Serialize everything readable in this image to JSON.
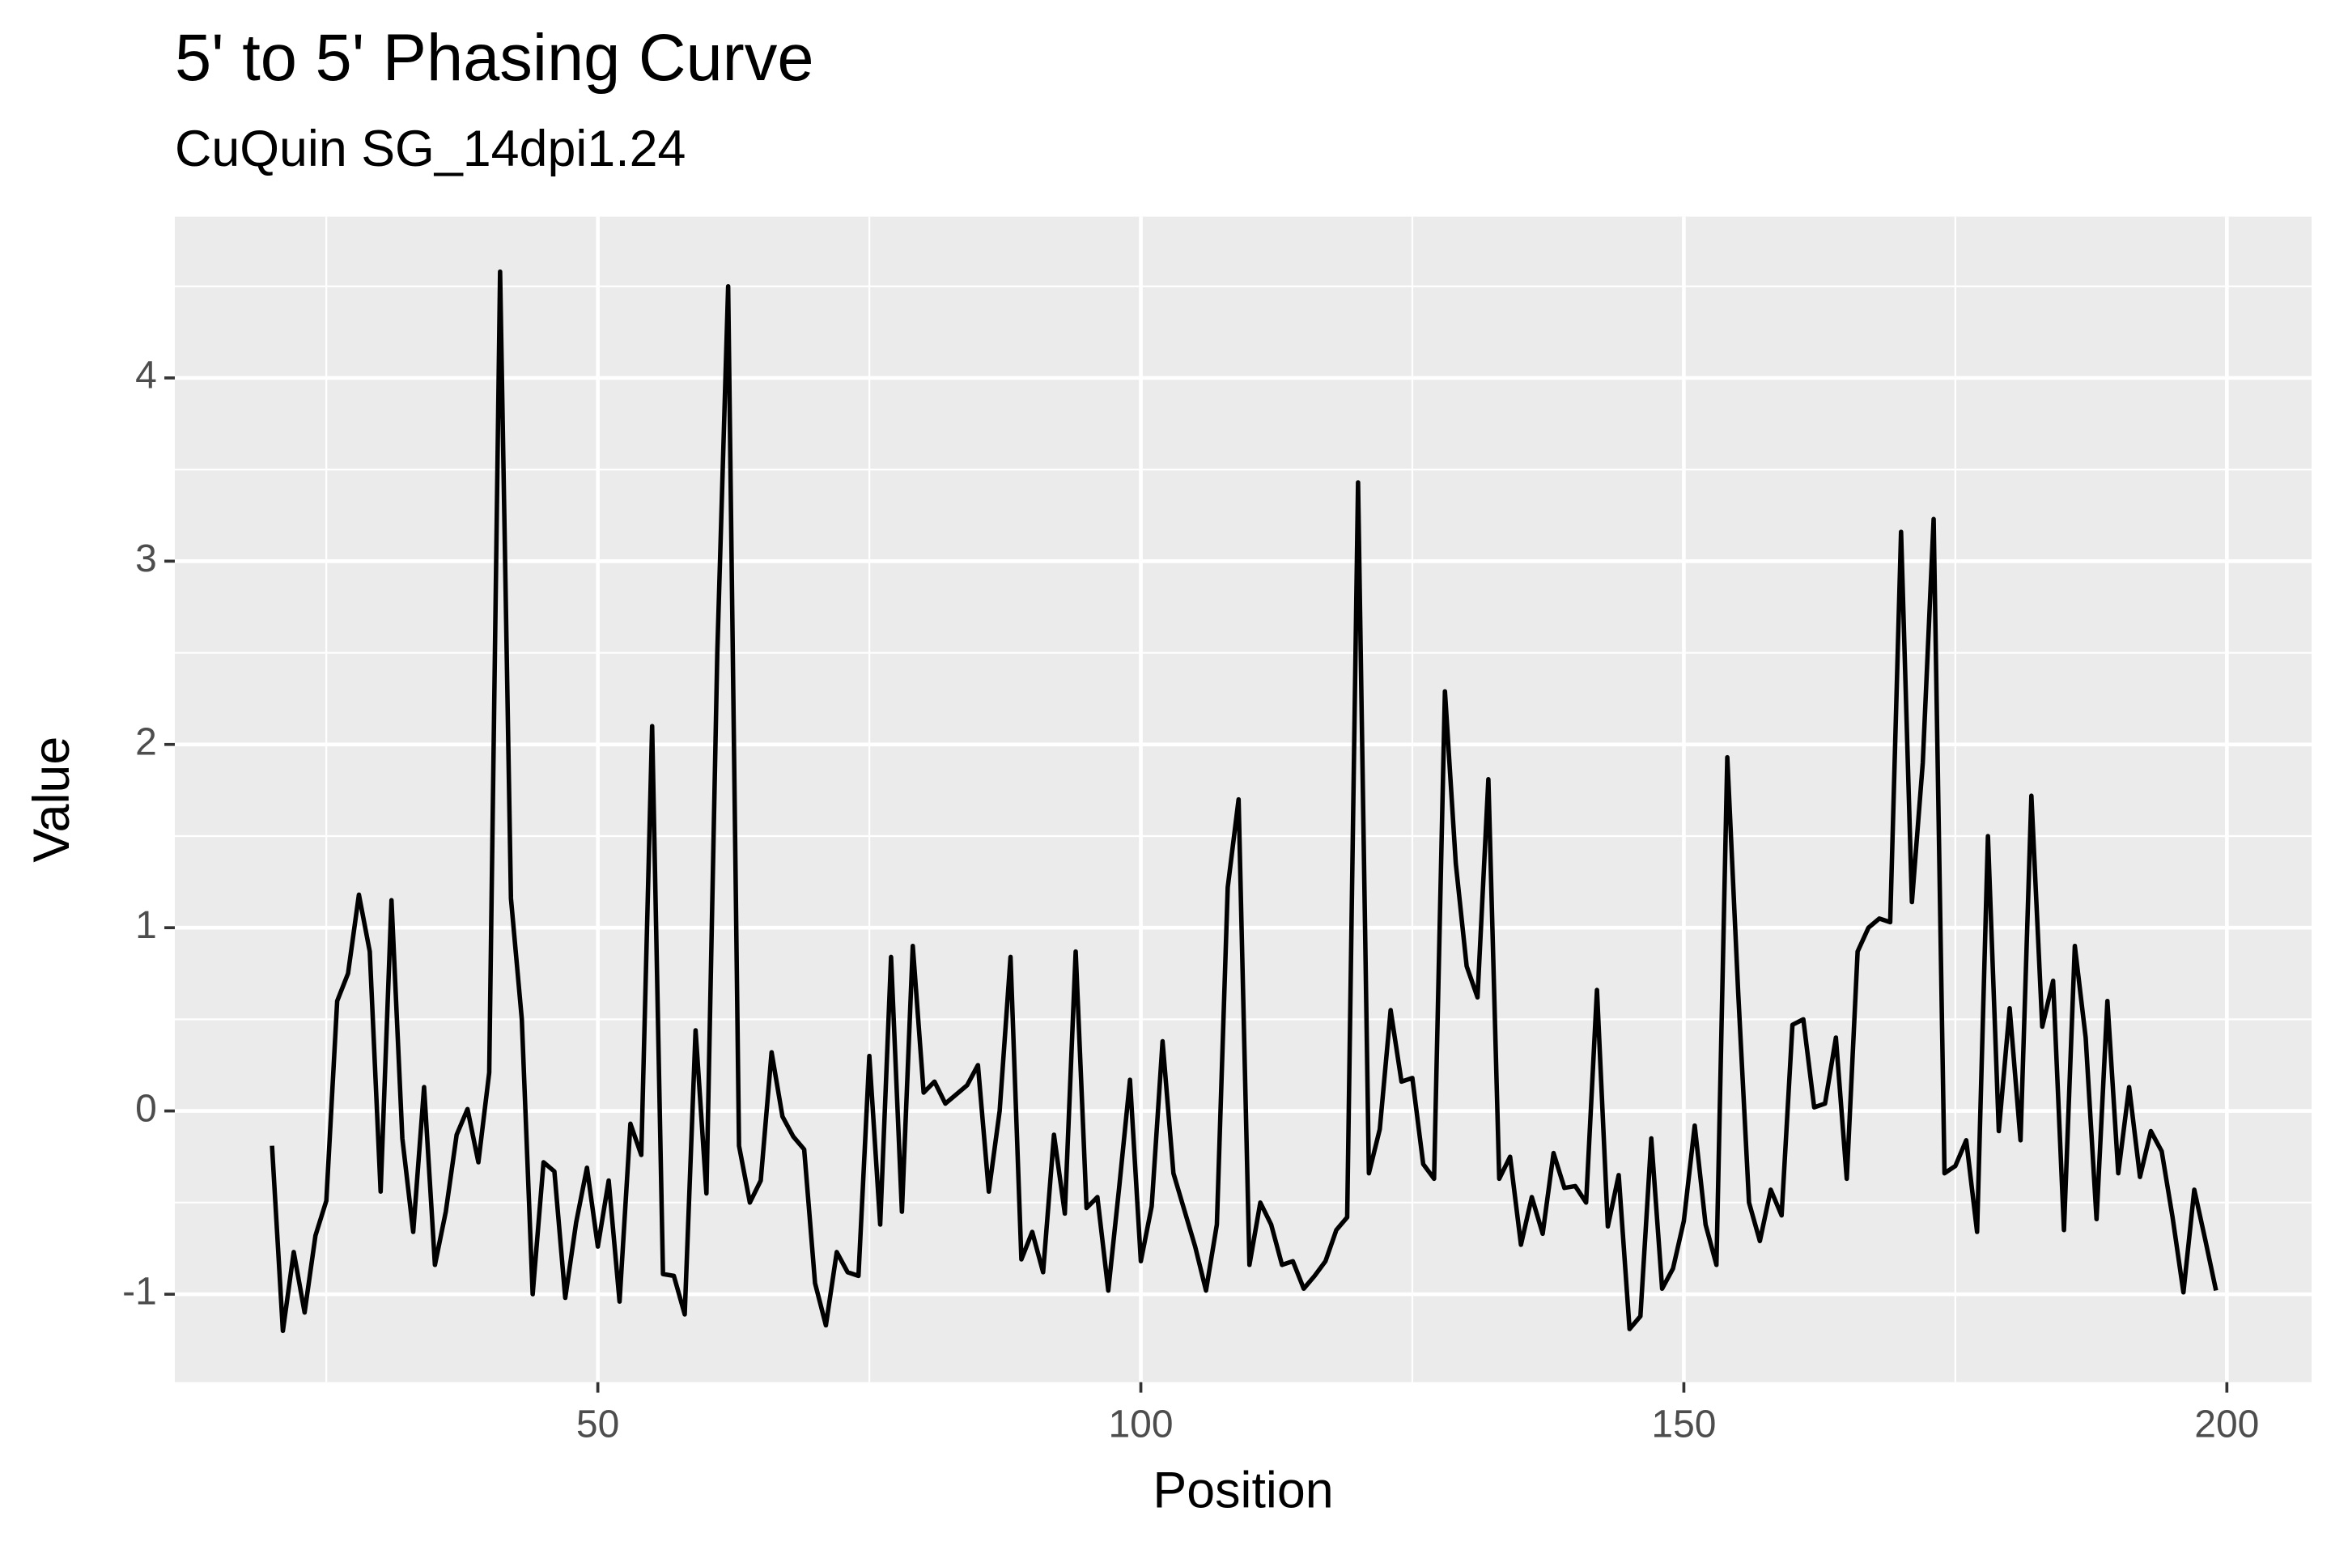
{
  "chart_data": {
    "type": "line",
    "title": "5' to 5' Phasing Curve",
    "subtitle": "CuQuin SG_14dpi1.24",
    "x_label": "Position",
    "y_label": "Value",
    "x": [
      20,
      21,
      22,
      23,
      24,
      25,
      26,
      27,
      28,
      29,
      30,
      31,
      32,
      33,
      34,
      35,
      36,
      37,
      38,
      39,
      40,
      41,
      42,
      43,
      44,
      45,
      46,
      47,
      48,
      49,
      50,
      51,
      52,
      53,
      54,
      55,
      56,
      57,
      58,
      59,
      60,
      61,
      62,
      63,
      64,
      65,
      66,
      67,
      68,
      69,
      70,
      71,
      72,
      73,
      74,
      75,
      76,
      77,
      78,
      79,
      80,
      81,
      82,
      83,
      84,
      85,
      86,
      87,
      88,
      89,
      90,
      91,
      92,
      93,
      94,
      95,
      96,
      97,
      98,
      99,
      100,
      101,
      102,
      103,
      104,
      105,
      106,
      107,
      108,
      109,
      110,
      111,
      112,
      113,
      114,
      115,
      116,
      117,
      118,
      119,
      120,
      121,
      122,
      123,
      124,
      125,
      126,
      127,
      128,
      129,
      130,
      131,
      132,
      133,
      134,
      135,
      136,
      137,
      138,
      139,
      140,
      141,
      142,
      143,
      144,
      145,
      146,
      147,
      148,
      149,
      150,
      151,
      152,
      153,
      154,
      155,
      156,
      157,
      158,
      159,
      160,
      161,
      162,
      163,
      164,
      165,
      166,
      167,
      168,
      169,
      170,
      171,
      172,
      173,
      174,
      175,
      176,
      177,
      178,
      179,
      180,
      181,
      182,
      183,
      184,
      185,
      186,
      187,
      188,
      189,
      190,
      191,
      192,
      193,
      194,
      195,
      196,
      197,
      198,
      199
    ],
    "series": [
      {
        "color": "#000000",
        "values": [
          -0.19,
          -1.2,
          -0.77,
          -1.1,
          -0.68,
          -0.49,
          0.6,
          0.75,
          1.18,
          0.87,
          -0.44,
          1.15,
          -0.15,
          -0.66,
          0.13,
          -0.84,
          -0.55,
          -0.13,
          0.01,
          -0.28,
          0.21,
          4.58,
          1.16,
          0.5,
          -1.0,
          -0.28,
          -0.33,
          -1.02,
          -0.61,
          -0.31,
          -0.74,
          -0.38,
          -1.04,
          -0.07,
          -0.24,
          2.1,
          -0.89,
          -0.9,
          -1.11,
          0.44,
          -0.45,
          2.5,
          4.5,
          -0.19,
          -0.5,
          -0.38,
          0.32,
          -0.03,
          -0.14,
          -0.21,
          -0.94,
          -1.17,
          -0.77,
          -0.88,
          -0.9,
          0.3,
          -0.62,
          0.84,
          -0.55,
          0.9,
          0.1,
          0.16,
          0.04,
          0.09,
          0.14,
          0.25,
          -0.44,
          0.0,
          0.84,
          -0.81,
          -0.66,
          -0.88,
          -0.13,
          -0.56,
          0.87,
          -0.53,
          -0.47,
          -0.98,
          -0.42,
          0.17,
          -0.82,
          -0.52,
          0.38,
          -0.34,
          -0.54,
          -0.74,
          -0.98,
          -0.62,
          1.22,
          1.7,
          -0.84,
          -0.5,
          -0.62,
          -0.84,
          -0.82,
          -0.97,
          -0.9,
          -0.82,
          -0.65,
          -0.58,
          3.43,
          -0.34,
          -0.1,
          0.55,
          0.16,
          0.18,
          -0.29,
          -0.37,
          2.29,
          1.35,
          0.79,
          0.62,
          1.81,
          -0.37,
          -0.25,
          -0.73,
          -0.47,
          -0.67,
          -0.23,
          -0.42,
          -0.41,
          -0.5,
          0.66,
          -0.63,
          -0.35,
          -1.19,
          -1.12,
          -0.15,
          -0.97,
          -0.86,
          -0.6,
          -0.08,
          -0.62,
          -0.84,
          1.93,
          0.65,
          -0.5,
          -0.71,
          -0.43,
          -0.57,
          0.47,
          0.5,
          0.02,
          0.04,
          0.4,
          -0.37,
          0.87,
          1.0,
          1.05,
          1.03,
          3.16,
          1.14,
          1.9,
          3.23,
          -0.34,
          -0.3,
          -0.16,
          -0.66,
          1.5,
          -0.11,
          0.56,
          -0.16,
          1.72,
          0.46,
          0.71,
          -0.65,
          0.9,
          0.4,
          -0.59,
          0.6,
          -0.34,
          0.13,
          -0.36,
          -0.11,
          -0.22,
          -0.58,
          -0.99,
          -0.43,
          -0.7,
          -0.98
        ]
      }
    ],
    "xlim": [
      11.05,
      207.8
    ],
    "ylim": [
      -1.48,
      4.88
    ],
    "xticks": [
      50,
      100,
      150,
      200
    ],
    "yticks": [
      -1,
      0,
      1,
      2,
      3,
      4
    ],
    "x_minor_grid": [
      25,
      75,
      125,
      175
    ],
    "y_minor_grid": [
      -0.5,
      0.5,
      1.5,
      2.5,
      3.5,
      4.5
    ],
    "grid": true,
    "panel_color": "#ebebeb",
    "grid_color": "#ffffff"
  }
}
